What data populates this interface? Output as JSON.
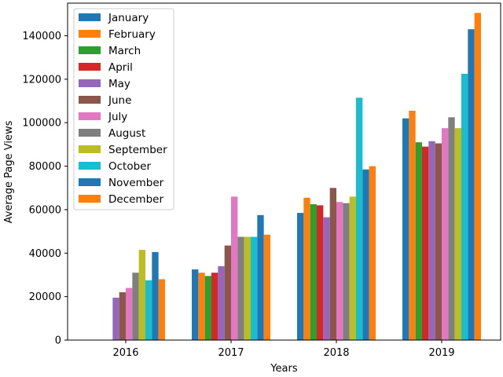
{
  "chart_data": {
    "type": "bar",
    "categories": [
      "2016",
      "2017",
      "2018",
      "2019"
    ],
    "xlabel": "Years",
    "ylabel": "Average Page Views",
    "title": "",
    "ylim": [
      0,
      155000
    ],
    "yticks": [
      0,
      20000,
      40000,
      60000,
      80000,
      100000,
      120000,
      140000
    ],
    "legend_position": "top-left",
    "grid": false,
    "series": [
      {
        "name": "January",
        "color": "#1f77b4",
        "values": [
          0,
          32500,
          58500,
          102000
        ]
      },
      {
        "name": "February",
        "color": "#ff7f0e",
        "values": [
          0,
          31000,
          65500,
          105500
        ]
      },
      {
        "name": "March",
        "color": "#2ca02c",
        "values": [
          0,
          29500,
          62500,
          91000
        ]
      },
      {
        "name": "April",
        "color": "#d62728",
        "values": [
          0,
          31000,
          62000,
          89000
        ]
      },
      {
        "name": "May",
        "color": "#9467bd",
        "values": [
          19500,
          34000,
          56500,
          91500
        ]
      },
      {
        "name": "June",
        "color": "#8c564b",
        "values": [
          22000,
          43500,
          70000,
          90500
        ]
      },
      {
        "name": "July",
        "color": "#e377c2",
        "values": [
          24000,
          66000,
          63500,
          97500
        ]
      },
      {
        "name": "August",
        "color": "#7f7f7f",
        "values": [
          31000,
          47500,
          63000,
          102500
        ]
      },
      {
        "name": "September",
        "color": "#bcbd22",
        "values": [
          41500,
          47500,
          66000,
          97500
        ]
      },
      {
        "name": "October",
        "color": "#17becf",
        "values": [
          27500,
          47500,
          111500,
          122500
        ]
      },
      {
        "name": "November",
        "color": "#1f77b4",
        "values": [
          40500,
          57500,
          78500,
          143000
        ]
      },
      {
        "name": "December",
        "color": "#ff7f0e",
        "values": [
          28000,
          48500,
          80000,
          150500
        ]
      }
    ]
  }
}
